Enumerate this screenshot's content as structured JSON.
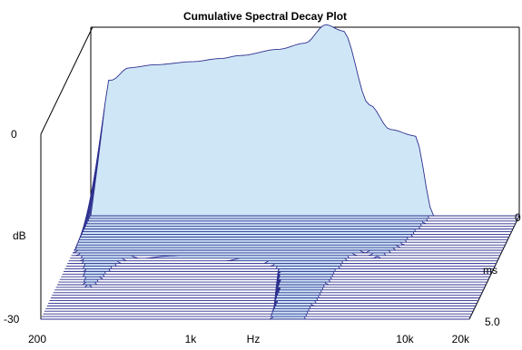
{
  "chart_data": {
    "type": "waterfall",
    "title": "Cumulative Spectral Decay Plot",
    "x_axis": {
      "label": "Hz",
      "scale": "log",
      "range": [
        200,
        20000
      ],
      "ticks": [
        {
          "value": 200,
          "label": "200"
        },
        {
          "value": 1000,
          "label": "1k"
        },
        {
          "value": 10000,
          "label": "10k"
        },
        {
          "value": 20000,
          "label": "20k"
        }
      ]
    },
    "y_axis": {
      "label": "dB",
      "range": [
        -30,
        0
      ],
      "ticks": [
        {
          "value": 0,
          "label": "0"
        },
        {
          "value": -30,
          "label": "-30"
        }
      ]
    },
    "z_axis": {
      "label": "ms",
      "range": [
        0,
        5.0
      ],
      "ticks": [
        {
          "value": 0,
          "label": "0"
        },
        {
          "value": 5.0,
          "label": "5.0"
        }
      ]
    },
    "slice_count": 40,
    "initial_response": [
      {
        "hz": 250,
        "db": -8
      },
      {
        "hz": 300,
        "db": -6
      },
      {
        "hz": 400,
        "db": -5.5
      },
      {
        "hz": 600,
        "db": -5
      },
      {
        "hz": 800,
        "db": -4.5
      },
      {
        "hz": 1000,
        "db": -4
      },
      {
        "hz": 1500,
        "db": -3
      },
      {
        "hz": 2000,
        "db": -2
      },
      {
        "hz": 2500,
        "db": 1
      },
      {
        "hz": 3000,
        "db": 0
      },
      {
        "hz": 4000,
        "db": -12
      },
      {
        "hz": 5000,
        "db": -16
      },
      {
        "hz": 6500,
        "db": -17
      },
      {
        "hz": 8000,
        "db": -30
      },
      {
        "hz": 20000,
        "db": -30
      }
    ],
    "colors": {
      "face": "#cfe6f7",
      "line": "#2d2f8e",
      "floor": "#cfe6f7",
      "frame": "#000000"
    }
  }
}
